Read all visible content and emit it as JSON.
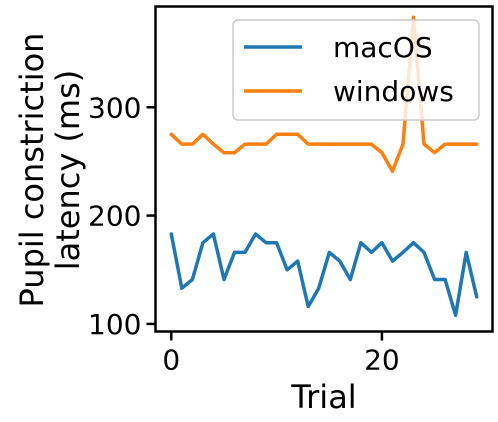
{
  "chart_data": {
    "type": "line",
    "title": "",
    "xlabel": "Trial",
    "ylabel_lines": [
      "Pupil constriction",
      "latency (ms)"
    ],
    "xlim": [
      -1.5,
      30.5
    ],
    "ylim": [
      93,
      393
    ],
    "xticks": [
      0,
      20
    ],
    "yticks": [
      100,
      200,
      300
    ],
    "grid": false,
    "legend_position": "top-right",
    "x": [
      0,
      1,
      2,
      3,
      4,
      5,
      6,
      7,
      8,
      9,
      10,
      11,
      12,
      13,
      14,
      15,
      16,
      17,
      18,
      19,
      20,
      21,
      22,
      23,
      24,
      25,
      26,
      27,
      28,
      29
    ],
    "series": [
      {
        "name": "macOS",
        "color": "#1f77b4",
        "values": [
          183,
          133,
          141,
          175,
          183,
          141,
          166,
          166,
          183,
          175,
          175,
          150,
          158,
          116,
          133,
          166,
          158,
          141,
          175,
          166,
          175,
          158,
          166,
          175,
          166,
          141,
          141,
          108,
          166,
          125
        ]
      },
      {
        "name": "windows",
        "color": "#ff7f0e",
        "values": [
          275,
          266,
          266,
          275,
          266,
          258,
          258,
          266,
          266,
          266,
          275,
          275,
          275,
          266,
          266,
          266,
          266,
          266,
          266,
          266,
          258,
          241,
          266,
          383,
          266,
          258,
          266,
          266,
          266,
          266
        ]
      }
    ]
  }
}
